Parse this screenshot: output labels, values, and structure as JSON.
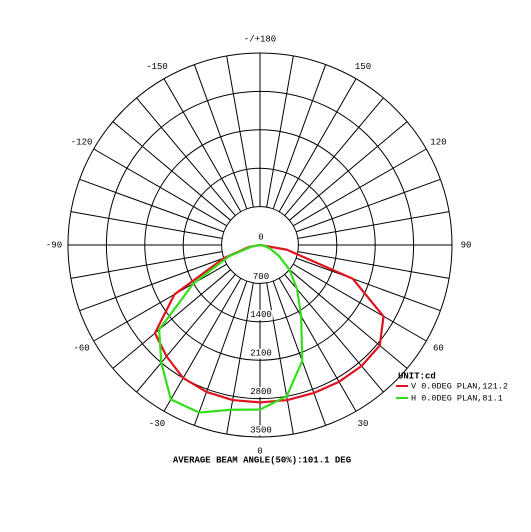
{
  "chart_data": {
    "type": "polar",
    "angles": [
      -90,
      -80,
      -70,
      -60,
      -50,
      -40,
      -30,
      -20,
      -10,
      0,
      10,
      20,
      30,
      40,
      50,
      60,
      70,
      80,
      90
    ],
    "series": [
      {
        "name": "V 0.0DEG PLAN,121.2",
        "color": "#e0141e",
        "values": [
          0,
          200,
          700,
          1800,
          2500,
          2650,
          2800,
          2850,
          2870,
          2870,
          2870,
          2870,
          2880,
          2880,
          2850,
          2600,
          1800,
          500,
          0
        ]
      },
      {
        "name": "H 0.0DEG PLAN,81.1",
        "color": "#33dd1a",
        "values": [
          0,
          150,
          600,
          1400,
          2400,
          2800,
          3250,
          3250,
          3050,
          3000,
          2800,
          2250,
          1500,
          1050,
          700,
          400,
          200,
          80,
          0
        ]
      }
    ],
    "rlim": [
      0,
      3500
    ],
    "rticks": [
      0,
      700,
      1400,
      2100,
      2800,
      3500
    ],
    "angle_grid_step": 10,
    "angle_ticks": [
      {
        "value": 180,
        "label": "-/+180"
      },
      150,
      120,
      90,
      60,
      30,
      0,
      -30,
      -60,
      -90,
      -120,
      -150
    ],
    "unit_label": "UNIT:cd",
    "footer": "AVERAGE BEAM ANGLE(50%):101.1 DEG"
  }
}
